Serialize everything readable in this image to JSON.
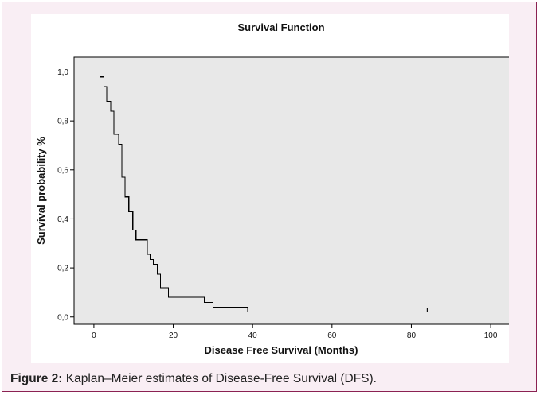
{
  "caption": {
    "label": "Figure 2:",
    "text": " Kaplan–Meier estimates of Disease-Free Survival (DFS)."
  },
  "chart_data": {
    "type": "line",
    "step": true,
    "title": "Survival Function",
    "xlabel": "Disease Free Survival (Months)",
    "ylabel": "Survival probability %",
    "xlim": [
      -5,
      105
    ],
    "ylim": [
      -0.03,
      1.06
    ],
    "x_ticks": [
      0,
      20,
      40,
      60,
      80,
      100
    ],
    "x_tick_labels": [
      "0",
      "20",
      "40",
      "60",
      "80",
      "100"
    ],
    "y_ticks": [
      0.0,
      0.2,
      0.4,
      0.6,
      0.8,
      1.0
    ],
    "y_tick_labels": [
      "0,0",
      "0,2",
      "0,4",
      "0,6",
      "0,8",
      "1,0"
    ],
    "plot_background": "#e8e8e8",
    "line_color": "#000000",
    "grid": false,
    "series": [
      {
        "x": [
          0.5,
          1.5,
          2.5,
          3.2,
          4.2,
          5,
          6.2,
          7,
          7.8,
          8.8,
          9.8,
          10.6,
          11.6,
          13.4,
          14.2,
          15,
          16,
          16.8,
          18.8,
          27.8,
          30,
          38.8,
          84
        ],
        "y": [
          1.0,
          0.98,
          0.94,
          0.88,
          0.84,
          0.745,
          0.705,
          0.57,
          0.49,
          0.43,
          0.355,
          0.315,
          0.315,
          0.255,
          0.235,
          0.215,
          0.175,
          0.12,
          0.08,
          0.06,
          0.04,
          0.02,
          0.02
        ]
      }
    ]
  }
}
